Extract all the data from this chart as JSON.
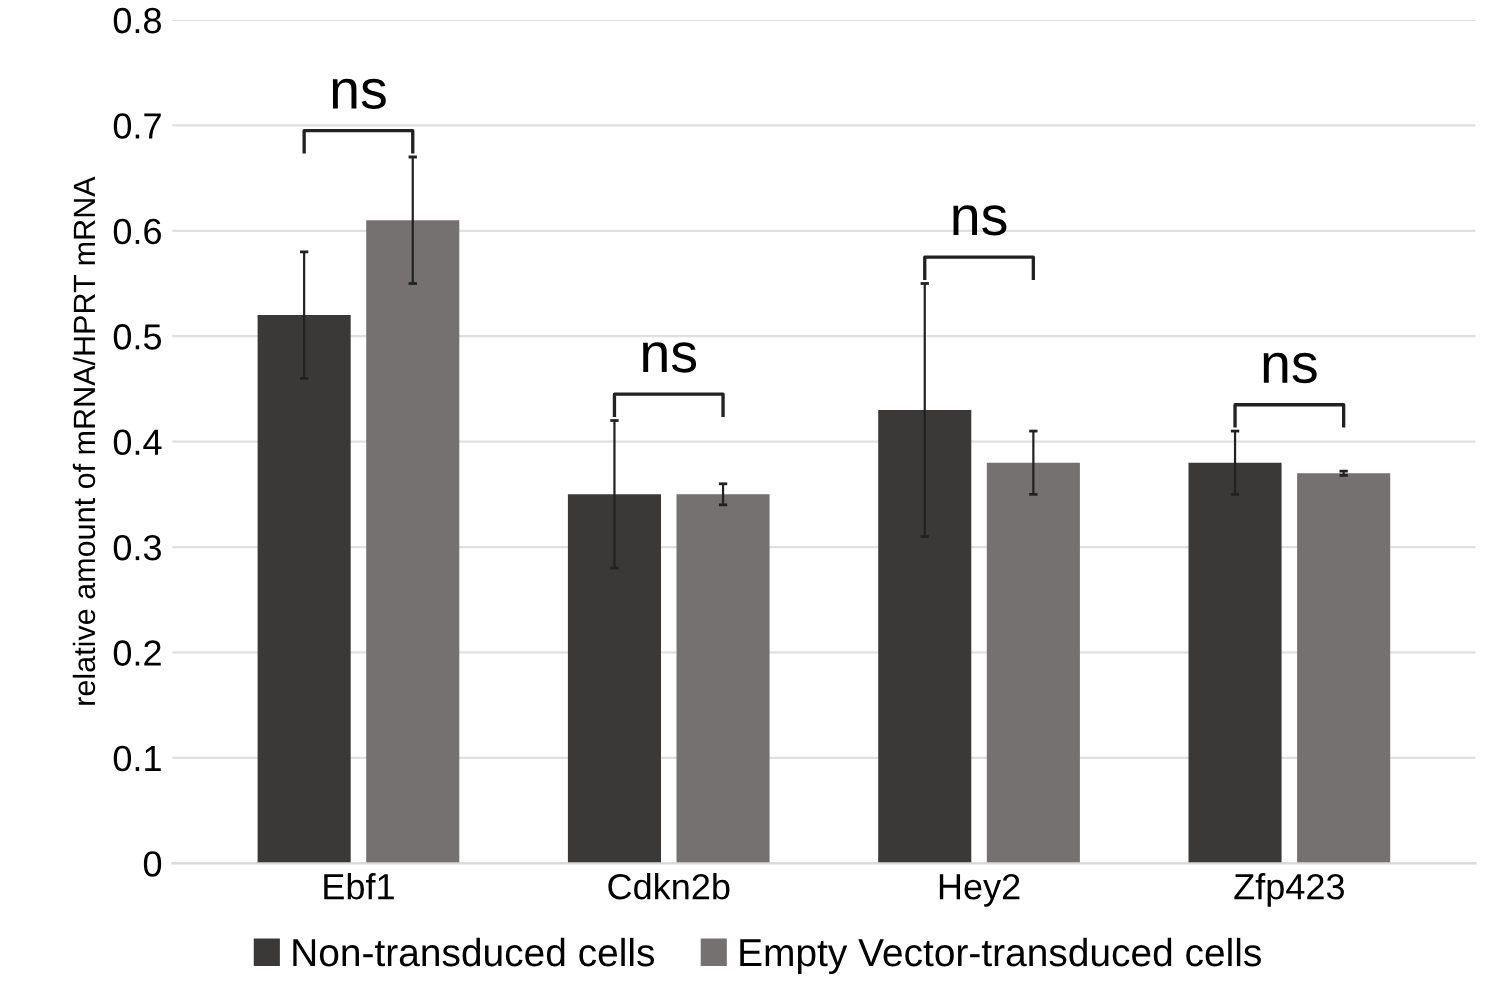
{
  "chart_data": {
    "type": "bar",
    "ylabel": "relative amount of mRNA/HPRT mRNA",
    "categories": [
      "Ebf1",
      "Cdkn2b",
      "Hey2",
      "Zfp423"
    ],
    "series": [
      {
        "name": "Non-transduced cells",
        "color": "#3b3838",
        "values": [
          0.52,
          0.35,
          0.43,
          0.38
        ],
        "errors": [
          0.06,
          0.07,
          0.12,
          0.03
        ]
      },
      {
        "name": "Empty Vector-transduced cells",
        "color": "#767171",
        "values": [
          0.61,
          0.35,
          0.38,
          0.37
        ],
        "errors": [
          0.06,
          0.01,
          0.03,
          0.002
        ]
      }
    ],
    "ylim": [
      0,
      0.8
    ],
    "yticks": [
      0,
      0.1,
      0.2,
      0.3,
      0.4,
      0.5,
      0.6,
      0.7,
      0.8
    ],
    "grid": "y",
    "legend": "bottom",
    "annotations": [
      "ns",
      "ns",
      "ns",
      "ns"
    ]
  }
}
